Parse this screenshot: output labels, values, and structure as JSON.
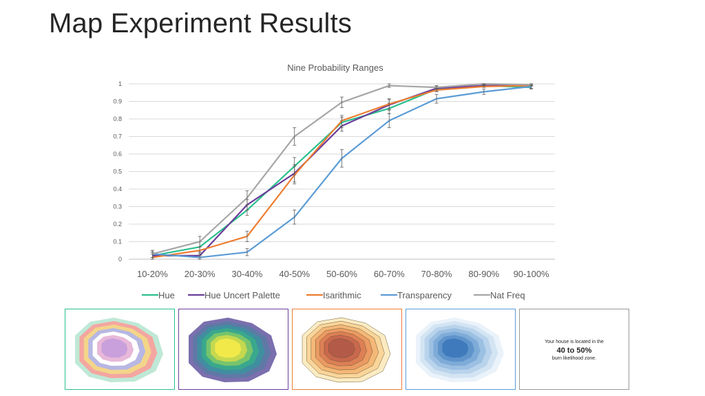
{
  "slide": {
    "title": "Map Experiment Results"
  },
  "chart_data": {
    "type": "line",
    "title": "Nine Probability Ranges",
    "xlabel": "",
    "ylabel": "",
    "ylim": [
      0,
      1
    ],
    "yticks": [
      "0",
      "0.1",
      "0.2",
      "0.3",
      "0.4",
      "0.5",
      "0.6",
      "0.7",
      "0.8",
      "0.9",
      "1"
    ],
    "categories": [
      "10-20%",
      "20-30%",
      "30-40%",
      "40-50%",
      "50-60%",
      "60-70%",
      "70-80%",
      "80-90%",
      "90-100%"
    ],
    "grid": true,
    "legend": "bottom",
    "series": [
      {
        "name": "Hue",
        "color": "#2bbf8e",
        "values": [
          0.02,
          0.07,
          0.28,
          0.53,
          0.78,
          0.86,
          0.97,
          0.99,
          0.98
        ],
        "errors": [
          0.02,
          0.03,
          0.03,
          0.05,
          0.03,
          0.03,
          0.01,
          0.005,
          0.01
        ]
      },
      {
        "name": "Hue Uncert Palette",
        "color": "#6a3d9a",
        "values": [
          0.02,
          0.02,
          0.31,
          0.49,
          0.76,
          0.88,
          0.975,
          0.99,
          0.995
        ],
        "errors": [
          0.02,
          0.02,
          0.03,
          0.05,
          0.03,
          0.03,
          0.01,
          0.005,
          0.005
        ]
      },
      {
        "name": "Isarithmic",
        "color": "#ed7d31",
        "values": [
          0.01,
          0.05,
          0.13,
          0.48,
          0.79,
          0.885,
          0.965,
          0.985,
          0.99
        ],
        "errors": [
          0.02,
          0.02,
          0.03,
          0.05,
          0.03,
          0.03,
          0.01,
          0.005,
          0.005
        ]
      },
      {
        "name": "Transparency",
        "color": "#5b9bd5",
        "values": [
          0.03,
          0.01,
          0.04,
          0.24,
          0.575,
          0.79,
          0.915,
          0.955,
          0.985
        ],
        "errors": [
          0.02,
          0.01,
          0.02,
          0.04,
          0.05,
          0.04,
          0.025,
          0.015,
          0.01
        ]
      },
      {
        "name": "Nat Freq",
        "color": "#a5a5a5",
        "values": [
          0.03,
          0.1,
          0.35,
          0.7,
          0.895,
          0.99,
          0.98,
          1.0,
          0.995
        ],
        "errors": [
          0.02,
          0.03,
          0.04,
          0.05,
          0.03,
          0.01,
          0.01,
          0.005,
          0.005
        ]
      }
    ]
  },
  "thumbnails": [
    {
      "name": "Hue",
      "border": "#2bbf8e",
      "palette": [
        "#bfe8d6",
        "#f4a6a0",
        "#f3d58a",
        "#b7b7e3",
        "#ffffff",
        "#e7b8d8",
        "#c9a0dc"
      ]
    },
    {
      "name": "Hue Uncert Palette",
      "border": "#6a3d9a",
      "palette": [
        "#7b6fae",
        "#5f79a6",
        "#3f8fa0",
        "#3aa88c",
        "#77c46c",
        "#c5d84f",
        "#f1e94a"
      ]
    },
    {
      "name": "Isarithmic",
      "border": "#ed7d31",
      "palette": [
        "#fcebc2",
        "#f9d59a",
        "#f4b878",
        "#eb9a62",
        "#dd7f55",
        "#c9684d",
        "#b35a48"
      ]
    },
    {
      "name": "Transparency",
      "border": "#5b9bd5",
      "palette": [
        "#eaf2fa",
        "#d3e4f3",
        "#b8d3eb",
        "#9cc0e2",
        "#7eabd8",
        "#5f94cb",
        "#3f7abd"
      ]
    },
    {
      "name": "Nat Freq",
      "border": "#999999",
      "text_line1": "Your house is located in the",
      "text_line2": "40 to 50%",
      "text_line3": "burn likelihood zone."
    }
  ]
}
